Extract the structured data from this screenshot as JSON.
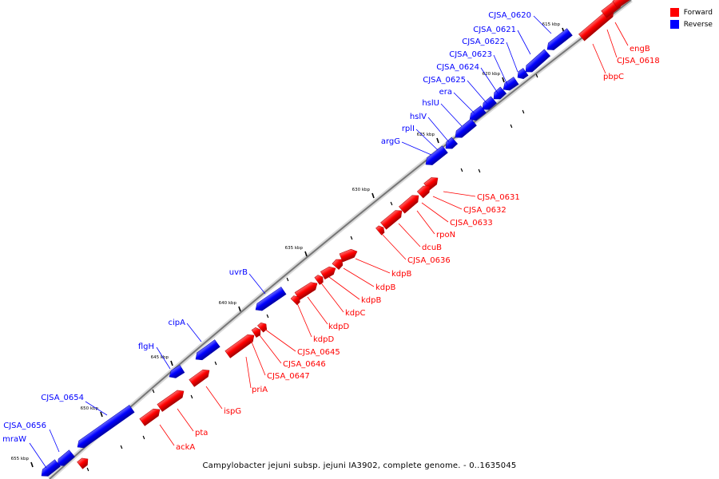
{
  "caption": "Campylobacter jejuni subsp. jejuni IA3902, complete genome. - 0..1635045",
  "legend": [
    {
      "label": "Forward",
      "color": "#ff0000"
    },
    {
      "label": "Reverse",
      "color": "#0000ff"
    }
  ],
  "colors": {
    "forward": "#ff0000",
    "reverse": "#0000ff",
    "backbone": "#888888",
    "tick": "#000000"
  },
  "ticks": [
    {
      "kbp": 615,
      "label": "615 kbp"
    },
    {
      "kbp": 620,
      "label": "620 kbp"
    },
    {
      "kbp": 625,
      "label": "625 kbp"
    },
    {
      "kbp": 630,
      "label": "630 kbp"
    },
    {
      "kbp": 635,
      "label": "635 kbp"
    },
    {
      "kbp": 640,
      "label": "640 kbp"
    },
    {
      "kbp": 645,
      "label": "645 kbp"
    },
    {
      "kbp": 650,
      "label": "650 kbp"
    },
    {
      "kbp": 655,
      "label": "655 kbp"
    }
  ],
  "labels": [
    {
      "text": "engB",
      "strand": "forward"
    },
    {
      "text": "CJSA_0618",
      "strand": "forward"
    },
    {
      "text": "pbpC",
      "strand": "forward"
    },
    {
      "text": "CJSA_0620",
      "strand": "reverse"
    },
    {
      "text": "CJSA_0621",
      "strand": "reverse"
    },
    {
      "text": "CJSA_0622",
      "strand": "reverse"
    },
    {
      "text": "CJSA_0623",
      "strand": "reverse"
    },
    {
      "text": "CJSA_0624",
      "strand": "reverse"
    },
    {
      "text": "CJSA_0625",
      "strand": "reverse"
    },
    {
      "text": "era",
      "strand": "reverse"
    },
    {
      "text": "hslU",
      "strand": "reverse"
    },
    {
      "text": "hslV",
      "strand": "reverse"
    },
    {
      "text": "rplI",
      "strand": "reverse"
    },
    {
      "text": "argG",
      "strand": "reverse"
    },
    {
      "text": "CJSA_0631",
      "strand": "forward"
    },
    {
      "text": "CJSA_0632",
      "strand": "forward"
    },
    {
      "text": "CJSA_0633",
      "strand": "forward"
    },
    {
      "text": "rpoN",
      "strand": "forward"
    },
    {
      "text": "dcuB",
      "strand": "forward"
    },
    {
      "text": "CJSA_0636",
      "strand": "forward"
    },
    {
      "text": "kdpB",
      "strand": "forward"
    },
    {
      "text": "kdpB",
      "strand": "forward"
    },
    {
      "text": "kdpB",
      "strand": "forward"
    },
    {
      "text": "kdpC",
      "strand": "forward"
    },
    {
      "text": "kdpD",
      "strand": "forward"
    },
    {
      "text": "kdpD",
      "strand": "forward"
    },
    {
      "text": "uvrB",
      "strand": "reverse"
    },
    {
      "text": "CJSA_0645",
      "strand": "forward"
    },
    {
      "text": "CJSA_0646",
      "strand": "forward"
    },
    {
      "text": "CJSA_0647",
      "strand": "forward"
    },
    {
      "text": "priA",
      "strand": "forward"
    },
    {
      "text": "cipA",
      "strand": "reverse"
    },
    {
      "text": "flgH",
      "strand": "reverse"
    },
    {
      "text": "ispG",
      "strand": "forward"
    },
    {
      "text": "pta",
      "strand": "forward"
    },
    {
      "text": "ackA",
      "strand": "forward"
    },
    {
      "text": "CJSA_0654",
      "strand": "reverse"
    },
    {
      "text": "CJSA_0656",
      "strand": "reverse"
    },
    {
      "text": "mraW",
      "strand": "reverse"
    }
  ]
}
